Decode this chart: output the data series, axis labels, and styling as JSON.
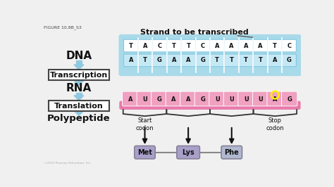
{
  "figure_label": "FIGURE 10.8B_S3",
  "bg_color": "#f0f0f0",
  "title": "Strand to be transcribed",
  "dna_top": [
    "T",
    "A",
    "C",
    "T",
    "T",
    "C",
    "A",
    "A",
    "A",
    "A",
    "T",
    "C"
  ],
  "dna_bottom": [
    "A",
    "T",
    "G",
    "A",
    "A",
    "G",
    "T",
    "T",
    "T",
    "T",
    "A",
    "G"
  ],
  "rna_seq": [
    "A",
    "U",
    "G",
    "A",
    "A",
    "G",
    "U",
    "U",
    "U",
    "U",
    "A",
    "G"
  ],
  "amino_acids": [
    "Met",
    "Lys",
    "Phe"
  ],
  "dna_band_color": "#a8daea",
  "dna_top_cell_color": "#ffffff",
  "dna_bot_cell_color": "#c5e8f5",
  "dna_cell_border": "#80c8e0",
  "rna_backbone_color": "#e87aaa",
  "rna_nuc_color": "#f0a0c0",
  "rna_nuc_border": "#ffffff",
  "amino_color": "#a8a0c8",
  "amino_border": "#888098",
  "amino_phe_color": "#b0b8d0",
  "arrow_color": "#90c8e0",
  "box_edge_color": "#444444",
  "text_color": "#111111",
  "yellow_circle": "#ffee00",
  "black": "#111111",
  "gray_line": "#888888"
}
